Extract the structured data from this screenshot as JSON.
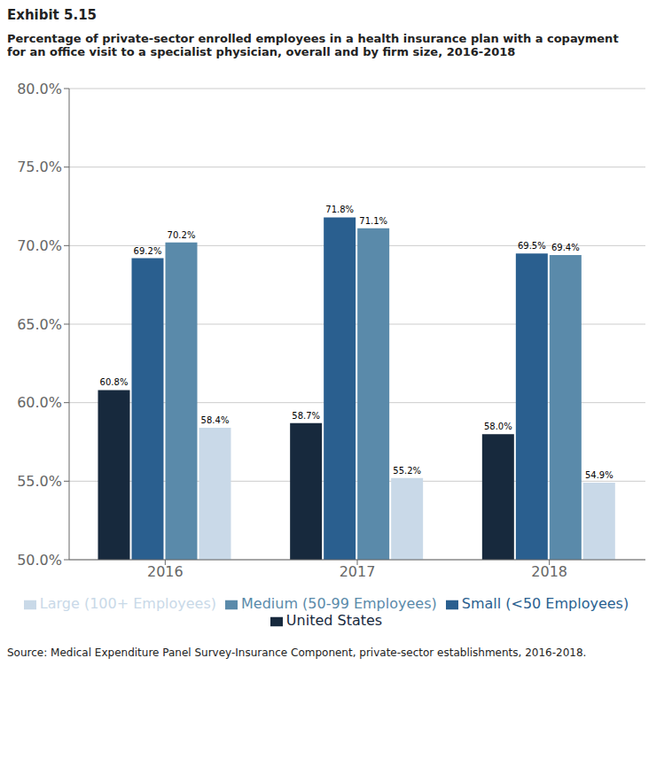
{
  "chart_data": {
    "type": "bar",
    "title": "Exhibit 5.15",
    "subtitle": "Percentage of private-sector enrolled employees in a health insurance plan with a copayment\nfor an office visit to a specialist physician, overall and by firm size, 2016-2018",
    "categories": [
      "2016",
      "2017",
      "2018"
    ],
    "series": [
      {
        "name": "United States",
        "color": "#17293d",
        "values": [
          60.8,
          58.7,
          58.0
        ],
        "value_labels": [
          "60.8%",
          "58.7%",
          "58.0%"
        ]
      },
      {
        "name": "Small (<50 Employees)",
        "color": "#2a5f8f",
        "values": [
          69.2,
          71.8,
          69.5
        ],
        "value_labels": [
          "69.2%",
          "71.8%",
          "69.5%"
        ]
      },
      {
        "name": "Medium (50-99 Employees)",
        "color": "#5a8aaa",
        "values": [
          70.2,
          71.1,
          69.4
        ],
        "value_labels": [
          "70.2%",
          "71.1%",
          "69.4%"
        ]
      },
      {
        "name": "Large (100+ Employees)",
        "color": "#c9d9e8",
        "values": [
          58.4,
          55.2,
          54.9
        ],
        "value_labels": [
          "58.4%",
          "55.2%",
          "54.9%"
        ]
      }
    ],
    "ylim": [
      50.0,
      80.0
    ],
    "yticks": [
      {
        "value": 50.0,
        "label": "50.0%"
      },
      {
        "value": 55.0,
        "label": "55.0%"
      },
      {
        "value": 60.0,
        "label": "60.0%"
      },
      {
        "value": 65.0,
        "label": "65.0%"
      },
      {
        "value": 70.0,
        "label": "70.0%"
      },
      {
        "value": 75.0,
        "label": "75.0%"
      },
      {
        "value": 80.0,
        "label": "80.0%"
      }
    ],
    "grid": true,
    "legend": "bottom",
    "data_labels": true,
    "annotations": [
      "Source: Medical Expenditure Panel Survey-Insurance Component, private-sector establishments, 2016-2018."
    ]
  }
}
